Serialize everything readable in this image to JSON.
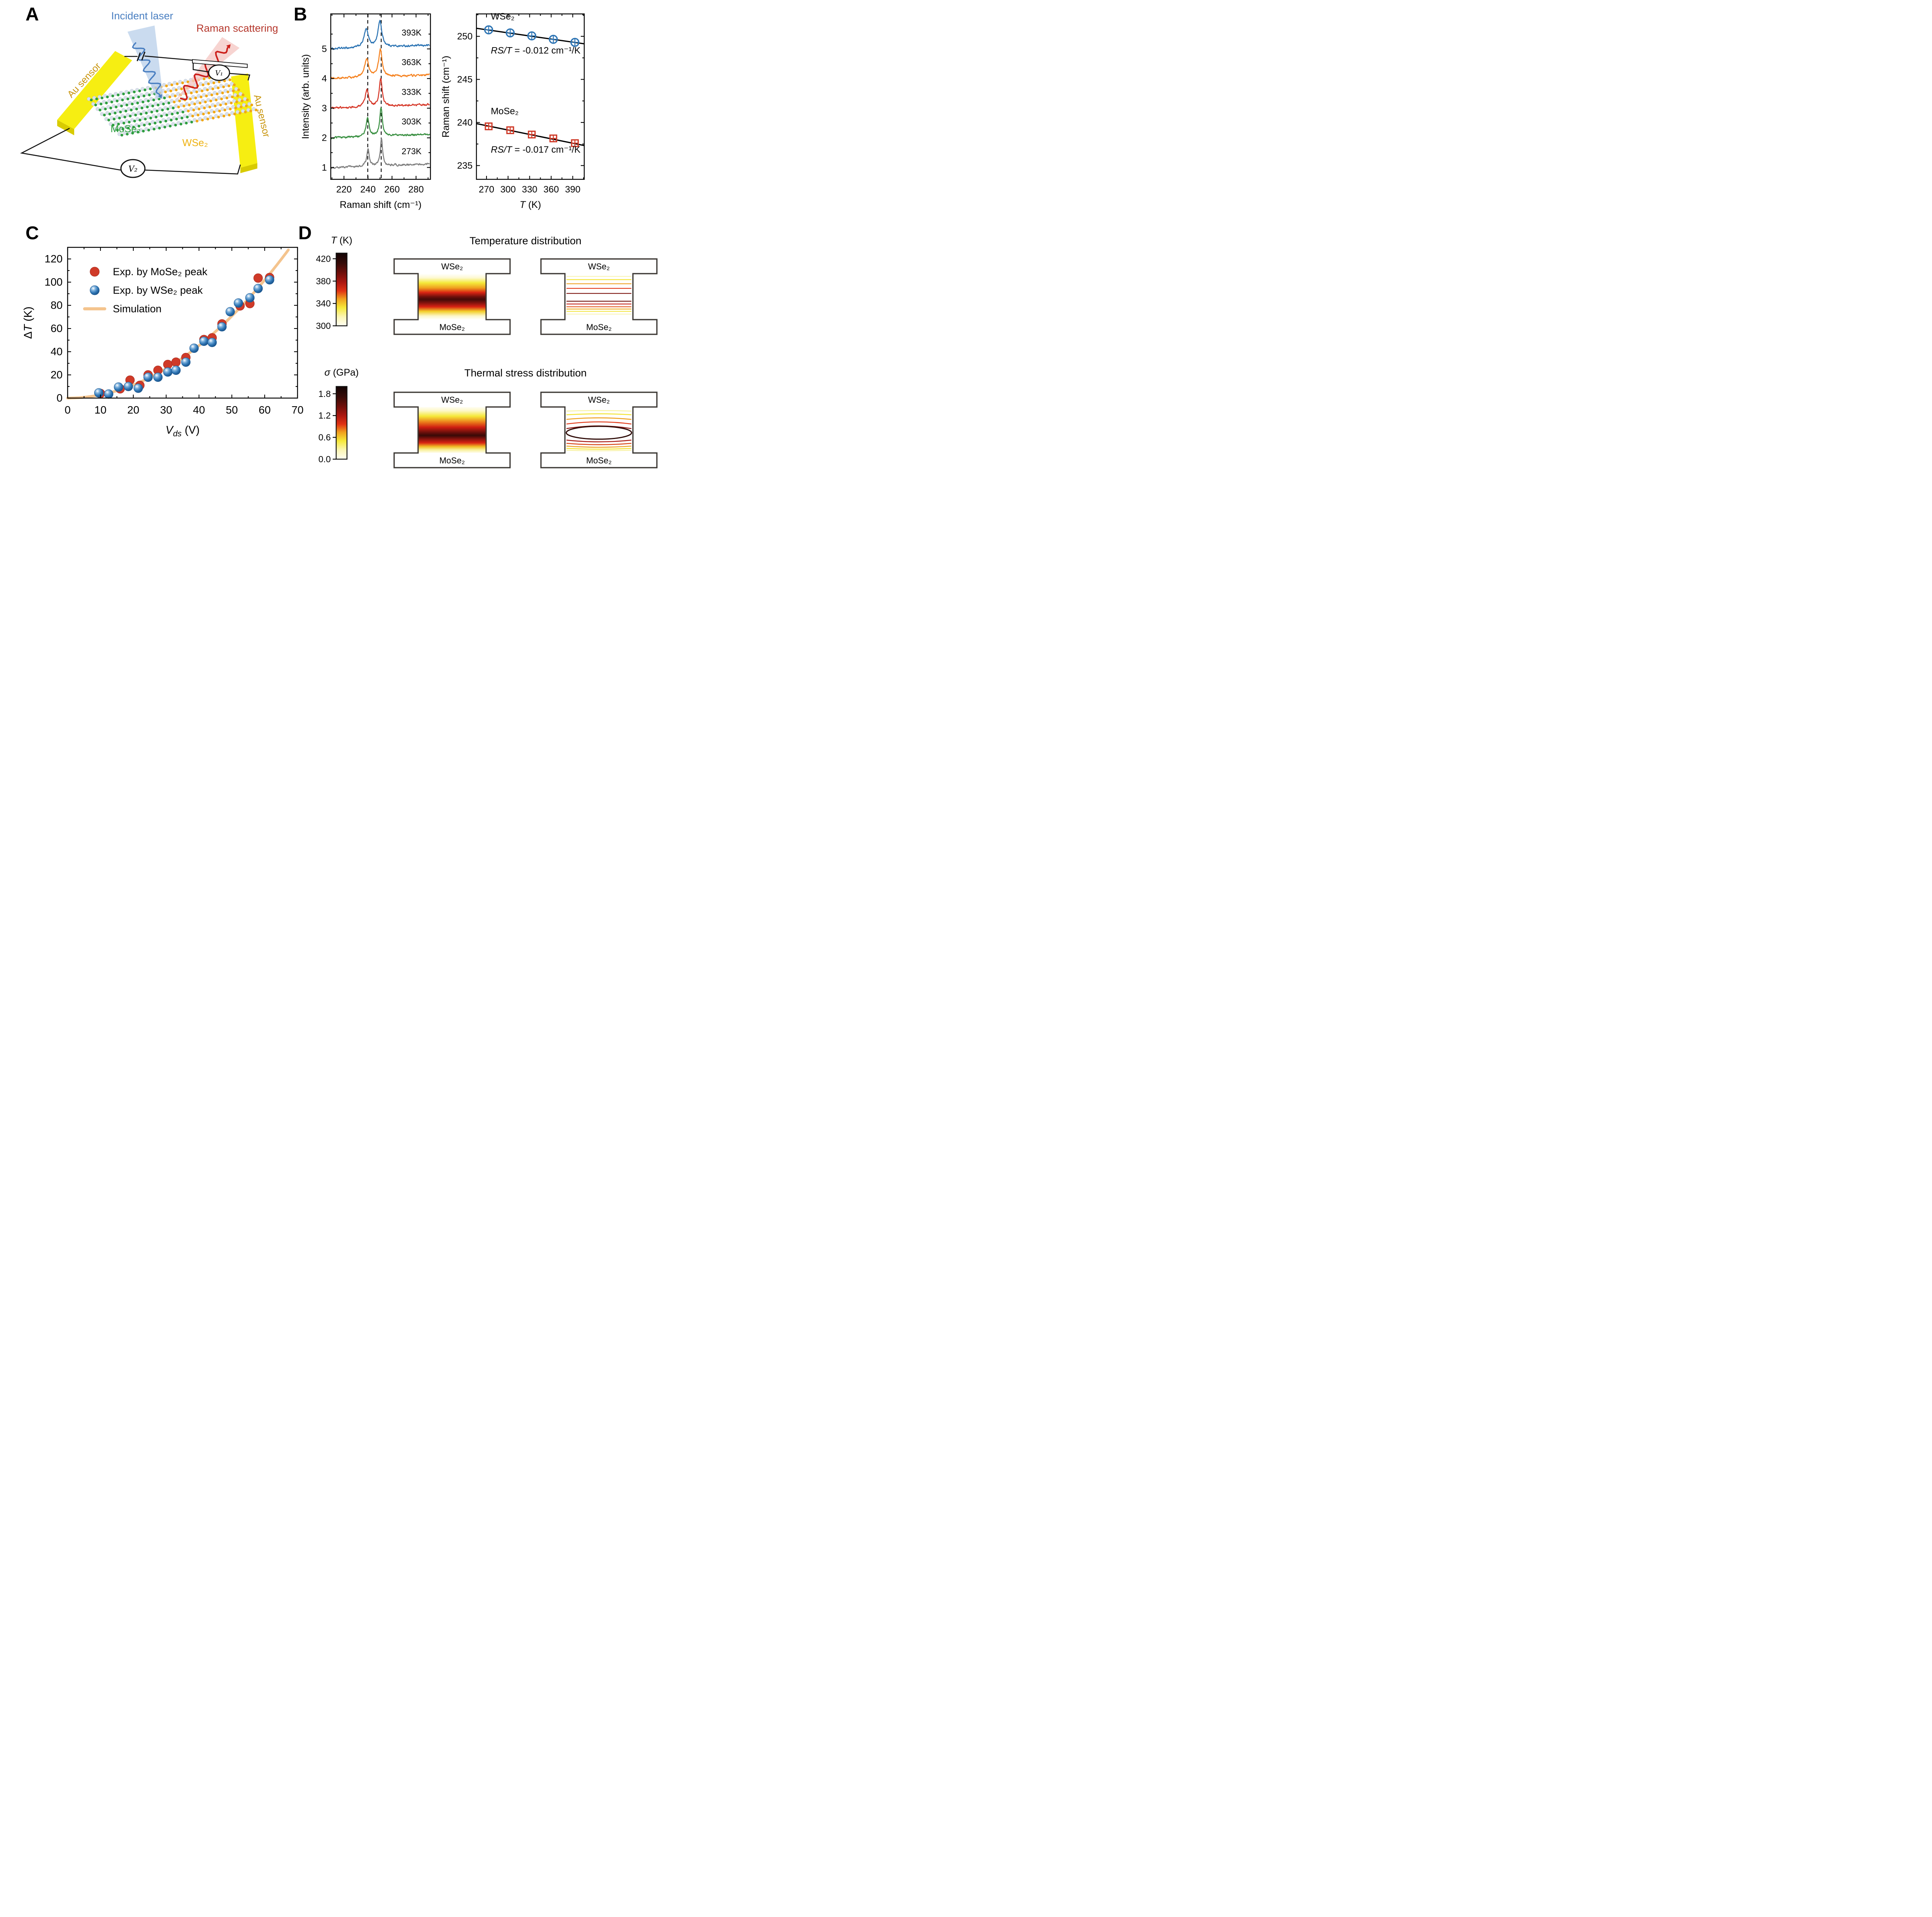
{
  "panels": {
    "a": "A",
    "b": "B",
    "c": "C",
    "d": "D"
  },
  "panel_a": {
    "labels": {
      "incident_laser": "Incident laser",
      "raman_scattering": "Raman scattering",
      "au_sensor_left": "Au sensor",
      "au_sensor_right": "Au sensor",
      "mose2": "MoSe₂",
      "wse2": "WSe₂",
      "v1": "V₁",
      "v2": "V₂"
    },
    "colors": {
      "laser_text": "#4a7fc1",
      "raman_text": "#b5372c",
      "au_text": "#c8940a",
      "mose2_text": "#2f9e41",
      "wse2_text": "#eeb212",
      "electrode": "#f6ee12",
      "electrode_edge": "#d8cb00",
      "atom_chalcogen": "#d9e0ea",
      "atom_mo": "#2f9e41",
      "atom_w": "#f0a818",
      "beam_blue": "#b8cfe9",
      "beam_red": "#f5c9c5",
      "wave_blue": "#4a7fc1",
      "wave_red": "#cc1f1a",
      "wire": "#111111"
    }
  },
  "chart_data": [
    {
      "id": "raman_spectra",
      "type": "line",
      "xlabel": "Raman shift (cm⁻¹)",
      "ylabel": "Intensity (arb. units)",
      "xlim": [
        209,
        292
      ],
      "ylim": [
        0.6,
        6.18
      ],
      "x_major_ticks": [
        220,
        240,
        260,
        280
      ],
      "x_minor_ticks": [
        210,
        230,
        250,
        270,
        290
      ],
      "y_major_ticks": [
        1,
        2,
        3,
        4,
        5
      ],
      "y_minor_ticks": [
        1.5,
        2.5,
        3.5,
        4.5,
        5.5
      ],
      "dashed_guides_x": [
        239.8,
        251.0
      ],
      "series": [
        {
          "label": "393K",
          "color": "#2e75b4",
          "offset": 5,
          "peaks": [
            {
              "center": 238.5,
              "amp": 0.6,
              "width": 2.2
            },
            {
              "center": 249.9,
              "amp": 0.88,
              "width": 1.9
            }
          ]
        },
        {
          "label": "363K",
          "color": "#f58220",
          "offset": 4,
          "peaks": [
            {
              "center": 238.9,
              "amp": 0.62,
              "width": 2.0
            },
            {
              "center": 250.3,
              "amp": 0.92,
              "width": 1.7
            }
          ]
        },
        {
          "label": "333K",
          "color": "#d6392a",
          "offset": 3,
          "peaks": [
            {
              "center": 239.2,
              "amp": 0.58,
              "width": 1.7
            },
            {
              "center": 250.6,
              "amp": 0.95,
              "width": 1.4
            }
          ]
        },
        {
          "label": "303K",
          "color": "#3c9144",
          "offset": 2,
          "peaks": [
            {
              "center": 239.6,
              "amp": 0.62,
              "width": 1.5
            },
            {
              "center": 250.9,
              "amp": 0.95,
              "width": 1.3
            }
          ]
        },
        {
          "label": "273K",
          "color": "#7f7f7f",
          "offset": 1,
          "peaks": [
            {
              "center": 240.0,
              "amp": 0.6,
              "width": 1.2
            },
            {
              "center": 251.2,
              "amp": 0.92,
              "width": 1.1
            }
          ]
        }
      ]
    },
    {
      "id": "raman_shift_vs_temperature",
      "type": "scatter",
      "xlabel": {
        "italic": "T",
        "rest": " (K)"
      },
      "ylabel": "Raman shift (cm⁻¹)",
      "xlim": [
        256,
        406
      ],
      "ylim": [
        233.4,
        252.6
      ],
      "x_major_ticks": [
        270,
        300,
        330,
        360,
        390
      ],
      "x_minor_ticks": [
        285,
        315,
        345,
        375,
        405
      ],
      "y_major_ticks": [
        235,
        240,
        245,
        250
      ],
      "y_minor_ticks": [
        237.5,
        242.5,
        247.5,
        252.5
      ],
      "series": [
        {
          "name": "WSe₂",
          "marker": "circle-plus",
          "color": "#2e75b4",
          "x": [
            273,
            303,
            333,
            363,
            393
          ],
          "y": [
            250.75,
            250.4,
            250.05,
            249.65,
            249.3
          ],
          "fit": {
            "x1": 256,
            "y1": 250.93,
            "x2": 406,
            "y2": 249.13
          },
          "label_pos": [
            276,
            251.95
          ],
          "annotation": {
            "italic": "RS/T",
            "rest": " = -0.012 cm⁻¹/K",
            "pos": [
              276,
              248.0
            ]
          }
        },
        {
          "name": "MoSe₂",
          "marker": "square-plus",
          "color": "#cf3a28",
          "x": [
            273,
            303,
            333,
            363,
            393
          ],
          "y": [
            239.55,
            239.1,
            238.6,
            238.15,
            237.6
          ],
          "fit": {
            "x1": 256,
            "y1": 239.87,
            "x2": 406,
            "y2": 237.32
          },
          "label_pos": [
            276,
            240.95
          ],
          "annotation": {
            "italic": "RS/T",
            "rest": " = -0.017 cm⁻¹/K",
            "pos": [
              276,
              236.5
            ]
          }
        }
      ]
    },
    {
      "id": "delta_t_vs_vds",
      "type": "scatter",
      "xlabel": {
        "italic": "V",
        "sub": "ds",
        "rest": " (V)"
      },
      "ylabel": {
        "pre": "Δ",
        "italic": "T",
        "rest": " (K)"
      },
      "xlim": [
        0,
        70
      ],
      "ylim": [
        0,
        130
      ],
      "x_major_ticks": [
        0,
        10,
        20,
        30,
        40,
        50,
        60,
        70
      ],
      "x_minor_ticks": [
        5,
        15,
        25,
        35,
        45,
        55,
        65
      ],
      "y_major_ticks": [
        0,
        20,
        40,
        60,
        80,
        100,
        120
      ],
      "y_minor_ticks": [
        10,
        30,
        50,
        70,
        90,
        110,
        130
      ],
      "legend": [
        {
          "label": "Exp. by MoSe₂ peak",
          "marker": "circle",
          "color": "#cf3a28"
        },
        {
          "label": "Exp. by WSe₂ peak",
          "marker": "sphere",
          "color": "#2e75b4"
        },
        {
          "label": "Simulation",
          "marker": "line",
          "color": "#f4c48e"
        }
      ],
      "series": [
        {
          "name": "Exp. by MoSe₂ peak",
          "marker": "circle",
          "color": "#cf3a28",
          "x": [
            10,
            16,
            19,
            22,
            24.5,
            27.5,
            30.5,
            33,
            36,
            41.5,
            44,
            47,
            52.5,
            55.5,
            58,
            61.5
          ],
          "y": [
            4,
            8,
            15.5,
            11,
            20,
            24,
            29,
            31,
            35,
            50.5,
            52,
            64,
            79.5,
            81.5,
            103.5,
            104
          ]
        },
        {
          "name": "Exp. by WSe₂ peak",
          "marker": "sphere",
          "color": "#2e75b4",
          "x": [
            9.5,
            12.5,
            15.5,
            18.5,
            21.5,
            24.5,
            27.5,
            30.5,
            33,
            36,
            38.5,
            41.5,
            44,
            47,
            49.5,
            52,
            55.5,
            58,
            61.5
          ],
          "y": [
            4.5,
            3.5,
            9.5,
            10,
            8.5,
            18,
            18,
            22.5,
            24,
            31,
            43,
            49,
            48,
            61.5,
            74.5,
            82,
            86.5,
            94.5,
            102
          ]
        },
        {
          "name": "Simulation",
          "marker": "line",
          "color": "#f4c48e",
          "curve": {
            "coeff": 0.0283,
            "x_max": 67.8
          }
        }
      ]
    },
    {
      "id": "temperature_distribution",
      "type": "heatmap",
      "title": "Temperature distribution",
      "colorbar": {
        "title": {
          "italic": "T",
          "rest": " (K)"
        },
        "min": 300,
        "max": 430,
        "ticks": [
          "420",
          "380",
          "340",
          "300"
        ],
        "stops": [
          [
            0,
            "#fffef2"
          ],
          [
            0.12,
            "#fcf6b8"
          ],
          [
            0.25,
            "#f6e93a"
          ],
          [
            0.37,
            "#f0a01e"
          ],
          [
            0.48,
            "#e03214"
          ],
          [
            0.6,
            "#ab1710"
          ],
          [
            0.73,
            "#6e0f0a"
          ],
          [
            0.86,
            "#360b08"
          ],
          [
            1,
            "#120404"
          ]
        ]
      },
      "labels": {
        "top": "WSe₂",
        "bottom": "MoSe₂"
      },
      "field_stops": [
        [
          0,
          "#ffffff"
        ],
        [
          0.09,
          "#fdf9d2"
        ],
        [
          0.2,
          "#f5e93a"
        ],
        [
          0.31,
          "#efa01e"
        ],
        [
          0.41,
          "#d92413"
        ],
        [
          0.5,
          "#70100c"
        ],
        [
          0.56,
          "#430a07"
        ],
        [
          0.63,
          "#7c120d"
        ],
        [
          0.72,
          "#d82213"
        ],
        [
          0.82,
          "#f3cf2a"
        ],
        [
          0.92,
          "#fcf6c8"
        ],
        [
          1,
          "#ffffff"
        ]
      ],
      "contours": [
        {
          "y": 0.06,
          "color": "#faf4b8",
          "bow": 0
        },
        {
          "y": 0.13,
          "color": "#f4e532",
          "bow": 0
        },
        {
          "y": 0.22,
          "color": "#efa01e",
          "bow": 0
        },
        {
          "y": 0.32,
          "color": "#e03616",
          "bow": 0
        },
        {
          "y": 0.43,
          "color": "#7c120d",
          "bow": 0
        },
        {
          "y": 0.6,
          "color": "#70100b",
          "bow": 0
        },
        {
          "y": 0.66,
          "color": "#c01b10",
          "bow": 0
        },
        {
          "y": 0.72,
          "color": "#e25417",
          "bow": 0
        },
        {
          "y": 0.77,
          "color": "#efae22",
          "bow": 0
        },
        {
          "y": 0.82,
          "color": "#f3e43a",
          "bow": 0
        },
        {
          "y": 0.88,
          "color": "#faf4b8",
          "bow": 0
        }
      ]
    },
    {
      "id": "thermal_stress_distribution",
      "type": "heatmap",
      "title": "Thermal stress distribution",
      "colorbar": {
        "title": {
          "italic": "σ",
          "rest": " (GPa)"
        },
        "min": 0,
        "max": 2,
        "ticks": [
          "1.8",
          "1.2",
          "0.6",
          "0.0"
        ],
        "stops": [
          [
            0,
            "#fffef2"
          ],
          [
            0.12,
            "#fcf6b8"
          ],
          [
            0.25,
            "#f6e93a"
          ],
          [
            0.37,
            "#f0a01e"
          ],
          [
            0.48,
            "#e03214"
          ],
          [
            0.6,
            "#ab1710"
          ],
          [
            0.73,
            "#6e0f0a"
          ],
          [
            0.86,
            "#360b08"
          ],
          [
            1,
            "#120404"
          ]
        ]
      },
      "labels": {
        "top": "WSe₂",
        "bottom": "MoSe₂"
      },
      "field_stops": [
        [
          0,
          "#fffef2"
        ],
        [
          0.08,
          "#fdf8ca"
        ],
        [
          0.2,
          "#f5e93a"
        ],
        [
          0.33,
          "#eb7c1a"
        ],
        [
          0.44,
          "#cf1f12"
        ],
        [
          0.55,
          "#6e100b"
        ],
        [
          0.62,
          "#380906"
        ],
        [
          0.7,
          "#8c130d"
        ],
        [
          0.78,
          "#d92413"
        ],
        [
          0.86,
          "#f0ba24"
        ],
        [
          0.93,
          "#f8f098"
        ],
        [
          1,
          "#fffdf0"
        ]
      ],
      "contours": [
        {
          "y": 0.09,
          "color": "#f8f2a2",
          "bow": 3
        },
        {
          "y": 0.17,
          "color": "#f3e42e",
          "bow": 5
        },
        {
          "y": 0.27,
          "color": "#efa01e",
          "bow": 8
        },
        {
          "y": 0.37,
          "color": "#e23a18",
          "bow": 11
        },
        {
          "y": 0.47,
          "color": "#8c1410",
          "bow": 14
        },
        {
          "y": 0.72,
          "color": "#a81710",
          "bow": -9
        },
        {
          "y": 0.79,
          "color": "#d84415",
          "bow": -7
        },
        {
          "y": 0.85,
          "color": "#eda020",
          "bow": -6
        },
        {
          "y": 0.9,
          "color": "#f3e42e",
          "bow": -4
        },
        {
          "y": 0.94,
          "color": "#f8f2a2",
          "bow": -3
        }
      ],
      "ellipse": {
        "cy": 0.56,
        "rx": 0.48,
        "ry": 0.14,
        "color": "#2e0a06"
      }
    }
  ]
}
